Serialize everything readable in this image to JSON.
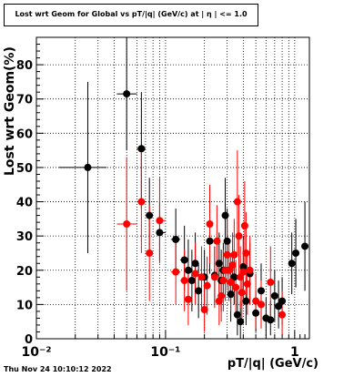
{
  "chart_data": {
    "type": "scatter",
    "title": "Lost wrt Geom for Global vs pT/|q| (GeV/c) at | η | <= 1.0",
    "xlabel": "pT/|q| (GeV/c)",
    "ylabel": "Lost wrt Geom(%)",
    "x_scale": "log",
    "xlim": [
      0.01,
      1.3
    ],
    "ylim": [
      0,
      88
    ],
    "grid": true,
    "y_ticks": [
      0,
      10,
      20,
      30,
      40,
      50,
      60,
      70,
      80
    ],
    "x_tick_labels": [
      {
        "value": 0.01,
        "label": "10⁻²"
      },
      {
        "value": 0.1,
        "label": "10⁻¹"
      },
      {
        "value": 1,
        "label": "1"
      }
    ],
    "series": [
      {
        "color": "#000000",
        "points": [
          {
            "x": 0.025,
            "y": 50,
            "xerr": [
              0.015,
              0.035
            ],
            "yerr": [
              25,
              75
            ]
          },
          {
            "x": 0.05,
            "y": 71.5,
            "xerr": [
              0.042,
              0.06
            ],
            "yerr": [
              55,
              88
            ]
          },
          {
            "x": 0.065,
            "y": 55.5,
            "xerr": [
              0.06,
              0.07
            ],
            "yerr": [
              38,
              72
            ]
          },
          {
            "x": 0.075,
            "y": 36,
            "xerr": [
              0.071,
              0.08
            ],
            "yerr": [
              25,
              47
            ]
          },
          {
            "x": 0.09,
            "y": 31,
            "xerr": [
              0.085,
              0.1
            ],
            "yerr": [
              23,
              40
            ]
          },
          {
            "x": 0.12,
            "y": 29,
            "xerr": [
              0.11,
              0.13
            ],
            "yerr": [
              20,
              38
            ]
          },
          {
            "x": 0.14,
            "y": 23,
            "xerr": [
              0.13,
              0.15
            ],
            "yerr": [
              14,
              33
            ]
          },
          {
            "x": 0.15,
            "y": 20,
            "xerr": [
              0.145,
              0.155
            ],
            "yerr": [
              10,
              29
            ]
          },
          {
            "x": 0.16,
            "y": 17,
            "xerr": [
              0.155,
              0.165
            ],
            "yerr": [
              8,
              26
            ]
          },
          {
            "x": 0.17,
            "y": 22,
            "xerr": [
              0.165,
              0.175
            ],
            "yerr": [
              13,
              31
            ]
          },
          {
            "x": 0.18,
            "y": 14,
            "xerr": [
              0.175,
              0.185
            ],
            "yerr": [
              6,
              22
            ]
          },
          {
            "x": 0.2,
            "y": 18,
            "xerr": [
              0.19,
              0.21
            ],
            "yerr": [
              10,
              26
            ]
          },
          {
            "x": 0.22,
            "y": 28.5,
            "xerr": [
              0.21,
              0.23
            ],
            "yerr": [
              19,
              38
            ]
          },
          {
            "x": 0.24,
            "y": 18.5,
            "xerr": [
              0.23,
              0.25
            ],
            "yerr": [
              10,
              27
            ]
          },
          {
            "x": 0.26,
            "y": 22,
            "xerr": [
              0.25,
              0.27
            ],
            "yerr": [
              13,
              31
            ]
          },
          {
            "x": 0.27,
            "y": 17,
            "xerr": [
              0.265,
              0.275
            ],
            "yerr": [
              8,
              26
            ]
          },
          {
            "x": 0.28,
            "y": 20,
            "xerr": [
              0.275,
              0.285
            ],
            "yerr": [
              12,
              28
            ]
          },
          {
            "x": 0.29,
            "y": 36,
            "xerr": [
              0.285,
              0.295
            ],
            "yerr": [
              25,
              47
            ]
          },
          {
            "x": 0.3,
            "y": 28.5,
            "xerr": [
              0.295,
              0.31
            ],
            "yerr": [
              19,
              38
            ]
          },
          {
            "x": 0.32,
            "y": 13,
            "xerr": [
              0.31,
              0.33
            ],
            "yerr": [
              5,
              21
            ]
          },
          {
            "x": 0.34,
            "y": 18,
            "xerr": [
              0.33,
              0.35
            ],
            "yerr": [
              10,
              26
            ]
          },
          {
            "x": 0.36,
            "y": 7,
            "xerr": [
              0.35,
              0.37
            ],
            "yerr": [
              1,
              14
            ]
          },
          {
            "x": 0.38,
            "y": 5,
            "xerr": [
              0.37,
              0.39
            ],
            "yerr": [
              0,
              11
            ]
          },
          {
            "x": 0.4,
            "y": 21,
            "xerr": [
              0.39,
              0.41
            ],
            "yerr": [
              12,
              30
            ]
          },
          {
            "x": 0.42,
            "y": 11,
            "xerr": [
              0.41,
              0.43
            ],
            "yerr": [
              4,
              18
            ]
          },
          {
            "x": 0.45,
            "y": 19,
            "xerr": [
              0.44,
              0.46
            ],
            "yerr": [
              10,
              28
            ]
          },
          {
            "x": 0.5,
            "y": 7.5,
            "xerr": [
              0.48,
              0.52
            ],
            "yerr": [
              2,
              14
            ]
          },
          {
            "x": 0.55,
            "y": 14,
            "xerr": [
              0.53,
              0.57
            ],
            "yerr": [
              6,
              22
            ]
          },
          {
            "x": 0.6,
            "y": 6,
            "xerr": [
              0.58,
              0.62
            ],
            "yerr": [
              1,
              12
            ]
          },
          {
            "x": 0.65,
            "y": 5.5,
            "xerr": [
              0.63,
              0.67
            ],
            "yerr": [
              1,
              11
            ]
          },
          {
            "x": 0.7,
            "y": 12.5,
            "xerr": [
              0.68,
              0.72
            ],
            "yerr": [
              5,
              20
            ]
          },
          {
            "x": 0.75,
            "y": 9.5,
            "xerr": [
              0.73,
              0.77
            ],
            "yerr": [
              3,
              17
            ]
          },
          {
            "x": 0.8,
            "y": 11,
            "xerr": [
              0.78,
              0.82
            ],
            "yerr": [
              4,
              18
            ]
          },
          {
            "x": 0.95,
            "y": 22,
            "xerr": [
              0.9,
              1.0
            ],
            "yerr": [
              13,
              31
            ]
          },
          {
            "x": 1.02,
            "y": 25,
            "xerr": [
              1.0,
              1.05
            ],
            "yerr": [
              15,
              35
            ]
          },
          {
            "x": 1.2,
            "y": 27,
            "xerr": [
              1.13,
              1.27
            ],
            "yerr": [
              14,
              40
            ]
          }
        ]
      },
      {
        "color": "#ff0000",
        "points": [
          {
            "x": 0.05,
            "y": 33.5,
            "xerr": [
              0.042,
              0.06
            ],
            "yerr": [
              14,
              53
            ]
          },
          {
            "x": 0.065,
            "y": 40,
            "xerr": [
              0.06,
              0.07
            ],
            "yerr": [
              25,
              55
            ]
          },
          {
            "x": 0.075,
            "y": 25,
            "xerr": [
              0.071,
              0.08
            ],
            "yerr": [
              11,
              39
            ]
          },
          {
            "x": 0.09,
            "y": 34.5,
            "xerr": [
              0.085,
              0.1
            ],
            "yerr": [
              22,
              47
            ]
          },
          {
            "x": 0.12,
            "y": 19.5,
            "xerr": [
              0.11,
              0.13
            ],
            "yerr": [
              10,
              29
            ]
          },
          {
            "x": 0.14,
            "y": 17,
            "xerr": [
              0.13,
              0.15
            ],
            "yerr": [
              8,
              26
            ]
          },
          {
            "x": 0.15,
            "y": 11.5,
            "xerr": [
              0.145,
              0.155
            ],
            "yerr": [
              4,
              19
            ]
          },
          {
            "x": 0.17,
            "y": 19,
            "xerr": [
              0.165,
              0.175
            ],
            "yerr": [
              10,
              28
            ]
          },
          {
            "x": 0.19,
            "y": 18,
            "xerr": [
              0.185,
              0.195
            ],
            "yerr": [
              9,
              27
            ]
          },
          {
            "x": 0.2,
            "y": 8.5,
            "xerr": [
              0.195,
              0.205
            ],
            "yerr": [
              2,
              15
            ]
          },
          {
            "x": 0.21,
            "y": 15.5,
            "xerr": [
              0.205,
              0.215
            ],
            "yerr": [
              7,
              24
            ]
          },
          {
            "x": 0.22,
            "y": 33.5,
            "xerr": [
              0.215,
              0.225
            ],
            "yerr": [
              22,
              45
            ]
          },
          {
            "x": 0.24,
            "y": 18,
            "xerr": [
              0.235,
              0.245
            ],
            "yerr": [
              9,
              27
            ]
          },
          {
            "x": 0.25,
            "y": 28.5,
            "xerr": [
              0.245,
              0.255
            ],
            "yerr": [
              18,
              39
            ]
          },
          {
            "x": 0.26,
            "y": 11,
            "xerr": [
              0.255,
              0.265
            ],
            "yerr": [
              4,
              18
            ]
          },
          {
            "x": 0.27,
            "y": 12.5,
            "xerr": [
              0.265,
              0.275
            ],
            "yerr": [
              5,
              20
            ]
          },
          {
            "x": 0.28,
            "y": 17,
            "xerr": [
              0.275,
              0.285
            ],
            "yerr": [
              8,
              26
            ]
          },
          {
            "x": 0.29,
            "y": 20,
            "xerr": [
              0.285,
              0.295
            ],
            "yerr": [
              11,
              29
            ]
          },
          {
            "x": 0.3,
            "y": 24.5,
            "xerr": [
              0.295,
              0.305
            ],
            "yerr": [
              14,
              35
            ]
          },
          {
            "x": 0.31,
            "y": 20,
            "xerr": [
              0.305,
              0.315
            ],
            "yerr": [
              11,
              29
            ]
          },
          {
            "x": 0.32,
            "y": 16.5,
            "xerr": [
              0.315,
              0.325
            ],
            "yerr": [
              8,
              25
            ]
          },
          {
            "x": 0.33,
            "y": 21.5,
            "xerr": [
              0.325,
              0.335
            ],
            "yerr": [
              12,
              31
            ]
          },
          {
            "x": 0.34,
            "y": 24.5,
            "xerr": [
              0.335,
              0.345
            ],
            "yerr": [
              14,
              35
            ]
          },
          {
            "x": 0.35,
            "y": 15,
            "xerr": [
              0.345,
              0.355
            ],
            "yerr": [
              7,
              23
            ]
          },
          {
            "x": 0.36,
            "y": 40,
            "xerr": [
              0.355,
              0.365
            ],
            "yerr": [
              25,
              55
            ]
          },
          {
            "x": 0.37,
            "y": 30,
            "xerr": [
              0.365,
              0.375
            ],
            "yerr": [
              18,
              42
            ]
          },
          {
            "x": 0.38,
            "y": 18,
            "xerr": [
              0.375,
              0.385
            ],
            "yerr": [
              9,
              27
            ]
          },
          {
            "x": 0.39,
            "y": 13.5,
            "xerr": [
              0.385,
              0.395
            ],
            "yerr": [
              5,
              22
            ]
          },
          {
            "x": 0.4,
            "y": 19.5,
            "xerr": [
              0.395,
              0.405
            ],
            "yerr": [
              10,
              29
            ]
          },
          {
            "x": 0.41,
            "y": 33,
            "xerr": [
              0.405,
              0.415
            ],
            "yerr": [
              20,
              46
            ]
          },
          {
            "x": 0.42,
            "y": 25,
            "xerr": [
              0.415,
              0.425
            ],
            "yerr": [
              13,
              37
            ]
          },
          {
            "x": 0.43,
            "y": 16,
            "xerr": [
              0.425,
              0.435
            ],
            "yerr": [
              7,
              25
            ]
          },
          {
            "x": 0.45,
            "y": 20,
            "xerr": [
              0.44,
              0.46
            ],
            "yerr": [
              10,
              30
            ]
          },
          {
            "x": 0.5,
            "y": 11,
            "xerr": [
              0.48,
              0.52
            ],
            "yerr": [
              3,
              19
            ]
          },
          {
            "x": 0.55,
            "y": 10,
            "xerr": [
              0.53,
              0.57
            ],
            "yerr": [
              3,
              17
            ]
          },
          {
            "x": 0.65,
            "y": 16.5,
            "xerr": [
              0.63,
              0.67
            ],
            "yerr": [
              6,
              27
            ]
          },
          {
            "x": 0.8,
            "y": 7,
            "xerr": [
              0.78,
              0.82
            ],
            "yerr": [
              1,
              14
            ]
          }
        ]
      }
    ]
  },
  "footer": {
    "timestamp": "Thu Nov 24 10:10:12 2022"
  }
}
